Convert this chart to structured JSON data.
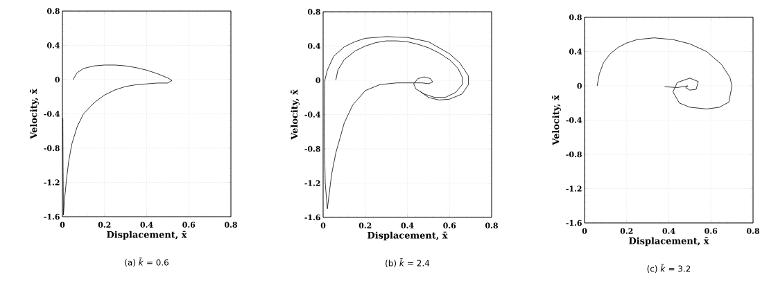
{
  "chart_data": [
    {
      "type": "line",
      "title": "(a)  *k̄* = 0.6",
      "xlabel": "Displacement, x̄",
      "ylabel": "Velocity, ẋ̄",
      "color": "#000000",
      "grid": true,
      "marker": "none",
      "line_style": "solid",
      "xlim": [
        0,
        0.8
      ],
      "ylim": [
        -1.6,
        0.8
      ],
      "xticks": [
        0,
        0.2,
        0.4,
        0.6,
        0.8
      ],
      "yticks": [
        -1.6,
        -1.2,
        -0.8,
        -0.4,
        0,
        0.4,
        0.8
      ],
      "x": [
        0.002,
        0.003,
        0.005,
        0.01,
        0.02,
        0.03,
        0.045,
        0.07,
        0.1,
        0.15,
        0.2,
        0.25,
        0.3,
        0.35,
        0.4,
        0.45,
        0.5,
        0.52,
        0.5,
        0.45,
        0.4,
        0.35,
        0.3,
        0.25,
        0.2,
        0.15,
        0.1,
        0.07,
        0.05
      ],
      "values": [
        -0.45,
        -1.0,
        -1.58,
        -1.4,
        -1.15,
        -0.95,
        -0.75,
        -0.55,
        -0.4,
        -0.27,
        -0.18,
        -0.12,
        -0.08,
        -0.06,
        -0.05,
        -0.04,
        -0.04,
        -0.01,
        0.02,
        0.07,
        0.11,
        0.14,
        0.16,
        0.17,
        0.17,
        0.16,
        0.13,
        0.08,
        0.0
      ]
    },
    {
      "type": "line",
      "title": "(b)  *k̄* = 2.4",
      "xlabel": "Displacement, x̄",
      "ylabel": "Velocity, ẋ̄",
      "color": "#000000",
      "grid": true,
      "marker": "none",
      "line_style": "solid",
      "xlim": [
        0,
        0.8
      ],
      "ylim": [
        -1.6,
        0.8
      ],
      "xticks": [
        0,
        0.2,
        0.4,
        0.6,
        0.8
      ],
      "yticks": [
        -1.6,
        -1.2,
        -0.8,
        -0.4,
        0,
        0.4,
        0.8
      ],
      "x": [
        0.06,
        0.07,
        0.1,
        0.15,
        0.2,
        0.25,
        0.3,
        0.35,
        0.4,
        0.45,
        0.5,
        0.55,
        0.6,
        0.64,
        0.66,
        0.66,
        0.63,
        0.58,
        0.53,
        0.48,
        0.44,
        0.43,
        0.45,
        0.48,
        0.51,
        0.52,
        0.5,
        0.47,
        0.43,
        0.35,
        0.27,
        0.2,
        0.14,
        0.1,
        0.06,
        0.04,
        0.02,
        0.01,
        0.005,
        0.008,
        0.02,
        0.05,
        0.1,
        0.15,
        0.2,
        0.3,
        0.4,
        0.5,
        0.6,
        0.65,
        0.69,
        0.69,
        0.66,
        0.6,
        0.55,
        0.5,
        0.46
      ],
      "values": [
        0.0,
        0.12,
        0.24,
        0.34,
        0.4,
        0.44,
        0.46,
        0.46,
        0.45,
        0.42,
        0.38,
        0.32,
        0.24,
        0.14,
        0.04,
        -0.05,
        -0.14,
        -0.2,
        -0.2,
        -0.16,
        -0.1,
        -0.04,
        0.02,
        0.04,
        0.02,
        -0.02,
        -0.04,
        -0.03,
        -0.03,
        -0.03,
        -0.05,
        -0.12,
        -0.29,
        -0.5,
        -0.85,
        -1.1,
        -1.5,
        -1.2,
        -0.6,
        0.0,
        0.12,
        0.28,
        0.39,
        0.45,
        0.49,
        0.51,
        0.5,
        0.45,
        0.31,
        0.2,
        0.05,
        -0.05,
        -0.16,
        -0.22,
        -0.23,
        -0.2,
        -0.13
      ]
    },
    {
      "type": "line",
      "title": "(c)  *k̄* = 3.2",
      "xlabel": "Displacement, x̄",
      "ylabel": "Velocity, ẋ̄",
      "color": "#000000",
      "grid": true,
      "marker": "none",
      "line_style": "solid",
      "xlim": [
        0,
        0.8
      ],
      "ylim": [
        -1.6,
        0.8
      ],
      "xticks": [
        0,
        0.2,
        0.4,
        0.6,
        0.8
      ],
      "yticks": [
        -1.6,
        -1.2,
        -0.8,
        -0.4,
        0,
        0.4,
        0.8
      ],
      "x": [
        0.06,
        0.07,
        0.09,
        0.12,
        0.16,
        0.2,
        0.25,
        0.33,
        0.42,
        0.5,
        0.58,
        0.65,
        0.69,
        0.7,
        0.685,
        0.64,
        0.58,
        0.5,
        0.45,
        0.42,
        0.44,
        0.5,
        0.54,
        0.53,
        0.5,
        0.48,
        0.49,
        0.44,
        0.38
      ],
      "values": [
        0.0,
        0.14,
        0.27,
        0.37,
        0.45,
        0.5,
        0.54,
        0.56,
        0.54,
        0.49,
        0.4,
        0.25,
        0.1,
        0.0,
        -0.19,
        -0.25,
        -0.27,
        -0.25,
        -0.2,
        -0.07,
        0.04,
        0.09,
        0.05,
        -0.04,
        -0.05,
        -0.02,
        0.0,
        -0.02,
        -0.01
      ]
    }
  ]
}
